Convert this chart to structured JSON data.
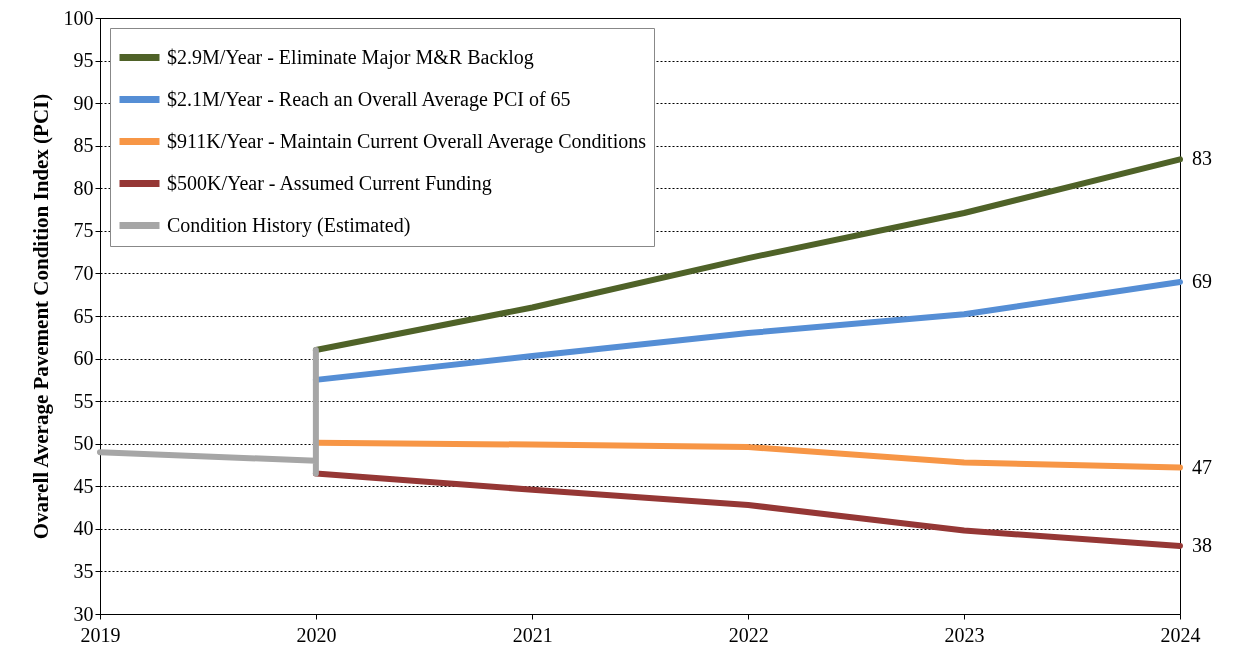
{
  "chart_data": {
    "type": "line",
    "ylabel": "Ovarell Average Pavement Condition Index (PCI)",
    "x": [
      "2020",
      "2021",
      "2022",
      "2023",
      "2024"
    ],
    "series": [
      {
        "name": "$2.9M/Year - Eliminate Major M&R Backlog",
        "color": "#4f6228",
        "values": [
          61,
          66,
          71.8,
          77.1,
          83.4
        ]
      },
      {
        "name": "$2.1M/Year - Reach an Overall Average PCI of 65",
        "color": "#558ed5",
        "values": [
          57.5,
          60.3,
          63,
          65.2,
          69
        ]
      },
      {
        "name": "$911K/Year - Maintain Current Overall Average Conditions",
        "color": "#f79646",
        "values": [
          50.1,
          49.9,
          49.6,
          47.8,
          47.2
        ]
      },
      {
        "name": "$500K/Year - Assumed Current Funding",
        "color": "#953735",
        "values": [
          46.5,
          44.6,
          42.8,
          39.8,
          38
        ]
      },
      {
        "name": "Condition History (Estimated)",
        "color": "#a6a6a6",
        "x": [
          "2019",
          "2020",
          "2020",
          "2020"
        ],
        "values": [
          49,
          48,
          46.5,
          61
        ]
      }
    ],
    "xlim": [
      "2019",
      "2024"
    ],
    "xticks": [
      "2019",
      "2020",
      "2021",
      "2022",
      "2023",
      "2024"
    ],
    "ylim": [
      30,
      100
    ],
    "yticks": [
      30,
      35,
      40,
      45,
      50,
      55,
      60,
      65,
      70,
      75,
      80,
      85,
      90,
      95,
      100
    ],
    "grid": "y",
    "legend": "top left",
    "marker": "none",
    "line_style": "solid",
    "annotations": [
      {
        "text": "83",
        "x": "2024",
        "y": 83.4
      },
      {
        "text": "69",
        "x": "2024",
        "y": 69
      },
      {
        "text": "47",
        "x": "2024",
        "y": 47.2
      },
      {
        "text": "38",
        "x": "2024",
        "y": 38
      }
    ]
  }
}
